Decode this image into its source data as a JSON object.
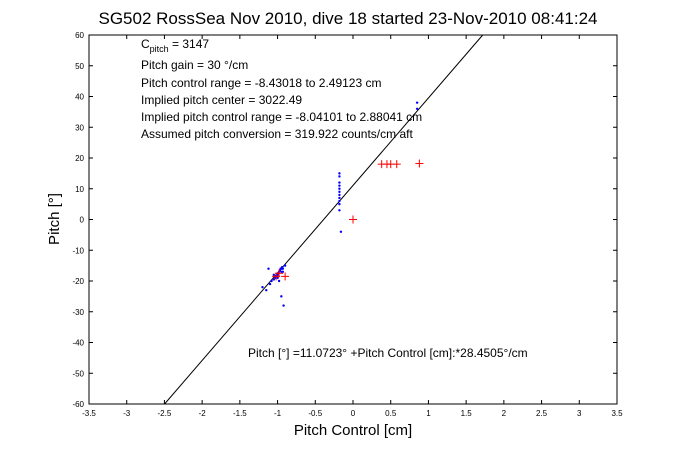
{
  "chart_data": {
    "type": "scatter",
    "title": "SG502 RossSea Nov 2010, dive 18 started 23-Nov-2010 08:41:24",
    "xlabel": "Pitch Control [cm]",
    "ylabel": "Pitch [°]",
    "xlim": [
      -3.5,
      3.5
    ],
    "ylim": [
      -60,
      60
    ],
    "xticks": [
      -3.5,
      -3,
      -2.5,
      -2,
      -1.5,
      -1,
      -0.5,
      0,
      0.5,
      1,
      1.5,
      2,
      2.5,
      3,
      3.5
    ],
    "xtick_labels": [
      "-3.5",
      "-3",
      "-2.5",
      "-2",
      "-1.5",
      "-1",
      "-0.5",
      "0",
      "0.5",
      "1",
      "1.5",
      "2",
      "2.5",
      "3",
      "3.5"
    ],
    "yticks": [
      -60,
      -50,
      -40,
      -30,
      -20,
      -10,
      0,
      10,
      20,
      30,
      40,
      50,
      60
    ],
    "ytick_labels": [
      "-60",
      "-50",
      "-40",
      "-30",
      "-20",
      "-10",
      "0",
      "10",
      "20",
      "30",
      "40",
      "50",
      "60"
    ],
    "grid": false,
    "annotations": {
      "c_pitch": {
        "main": "C",
        "sub": "pitch",
        "rest": " = 3147"
      },
      "lines": [
        "Pitch gain = 30 °/cm",
        "Pitch control range = -8.43018 to 2.49123 cm",
        "Implied pitch center = 3022.49",
        "Implied pitch control range = -8.04101 to 2.88041 cm",
        "Assumed pitch conversion = 319.922 counts/cm aft"
      ],
      "fit_equation": "Pitch [°] =11.0723° +Pitch Control [cm]:*28.4505°/cm"
    },
    "fit_line": {
      "intercept": 11.0723,
      "slope": 28.4505
    },
    "series": [
      {
        "color": "#0000ff",
        "marker": "dot",
        "points": [
          [
            -1.15,
            -23
          ],
          [
            -1.1,
            -21
          ],
          [
            -1.08,
            -20
          ],
          [
            -1.05,
            -19.5
          ],
          [
            -1.03,
            -19
          ],
          [
            -1.02,
            -18.5
          ],
          [
            -1.0,
            -18
          ],
          [
            -0.99,
            -17.5
          ],
          [
            -0.98,
            -17
          ],
          [
            -0.97,
            -16.5
          ],
          [
            -0.96,
            -16
          ],
          [
            -0.95,
            -16
          ],
          [
            -0.95,
            -17
          ],
          [
            -0.94,
            -15.5
          ],
          [
            -0.93,
            -16
          ],
          [
            -0.93,
            -17
          ],
          [
            -1.0,
            -19
          ],
          [
            -1.05,
            -18
          ],
          [
            -0.98,
            -20
          ],
          [
            -0.95,
            -25
          ],
          [
            -0.92,
            -28
          ],
          [
            -1.2,
            -22
          ],
          [
            -1.12,
            -16
          ],
          [
            -0.9,
            -15
          ],
          [
            -0.18,
            5
          ],
          [
            -0.18,
            6
          ],
          [
            -0.18,
            7
          ],
          [
            -0.18,
            8
          ],
          [
            -0.18,
            9
          ],
          [
            -0.18,
            10
          ],
          [
            -0.18,
            11
          ],
          [
            -0.18,
            12
          ],
          [
            -0.18,
            14
          ],
          [
            -0.18,
            15
          ],
          [
            -0.18,
            3
          ],
          [
            -0.16,
            -4
          ],
          [
            0.85,
            36
          ],
          [
            0.85,
            38
          ]
        ]
      },
      {
        "color": "#ff0000",
        "marker": "plus",
        "points": [
          [
            -1.02,
            -18.5
          ],
          [
            -0.98,
            -17.5
          ],
          [
            -0.9,
            -18.5
          ],
          [
            0.0,
            0
          ],
          [
            0.38,
            18
          ],
          [
            0.45,
            18
          ],
          [
            0.5,
            18
          ],
          [
            0.58,
            18
          ],
          [
            0.88,
            18.2
          ]
        ]
      }
    ]
  }
}
